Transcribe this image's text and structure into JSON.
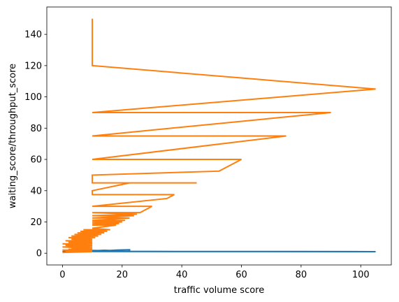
{
  "chart_data": {
    "type": "line",
    "title": "",
    "xlabel": "traffic volume score",
    "ylabel": "waiting_score/throughput_score",
    "xlim": [
      -5.25,
      110.25
    ],
    "ylim": [
      -7.5,
      157.5
    ],
    "xticks": [
      0,
      20,
      40,
      60,
      80,
      100
    ],
    "yticks": [
      0,
      20,
      40,
      60,
      80,
      100,
      120,
      140
    ],
    "grid": false,
    "legend": "none",
    "series": [
      {
        "color": "#1f77b4",
        "x": [
          0,
          1,
          2,
          3,
          4,
          5,
          6,
          8,
          10,
          12,
          14,
          16,
          18,
          20,
          22.5,
          22.5,
          10,
          20,
          40,
          60,
          80,
          105,
          10,
          1
        ],
        "y": [
          1.0,
          1.3,
          1.5,
          1.4,
          1.6,
          1.5,
          1.7,
          1.6,
          1.8,
          1.7,
          1.9,
          1.8,
          2.0,
          2.1,
          2.2,
          1.3,
          1.2,
          1.2,
          1.1,
          1.1,
          1.1,
          1.0,
          1.1,
          1.3
        ]
      },
      {
        "color": "#ff7f0e",
        "x": [
          10,
          10,
          105,
          10,
          90,
          10,
          75,
          10,
          60,
          52.5,
          10,
          10,
          45,
          22.5,
          10,
          10,
          37.5,
          35,
          10,
          30,
          26,
          10,
          25,
          10,
          24,
          10,
          22.5,
          10,
          21,
          10,
          20,
          10,
          19,
          10,
          18,
          10,
          16,
          7,
          15,
          6,
          14,
          5,
          13,
          4,
          12,
          3,
          11,
          2,
          10,
          3,
          10,
          1,
          10,
          2,
          10,
          0,
          10,
          1,
          10,
          0,
          10,
          3,
          10,
          2,
          10,
          0,
          10,
          1,
          10,
          0
        ],
        "y": [
          150,
          120,
          105,
          90,
          90,
          75,
          75,
          60,
          60,
          52.5,
          50,
          45,
          45,
          45,
          40,
          37.5,
          37.5,
          35,
          30,
          30,
          26,
          26,
          25,
          24,
          24,
          22.5,
          22.5,
          21,
          21,
          20,
          20,
          19,
          19,
          18,
          18,
          16,
          15,
          15,
          14,
          14,
          13,
          13,
          12,
          12,
          11,
          11,
          10,
          10,
          9,
          9,
          8,
          8,
          7,
          7,
          6,
          6,
          5,
          5,
          4,
          4,
          3,
          3,
          2.5,
          2.5,
          2,
          2,
          1.5,
          1.5,
          1,
          0.5
        ]
      }
    ]
  }
}
